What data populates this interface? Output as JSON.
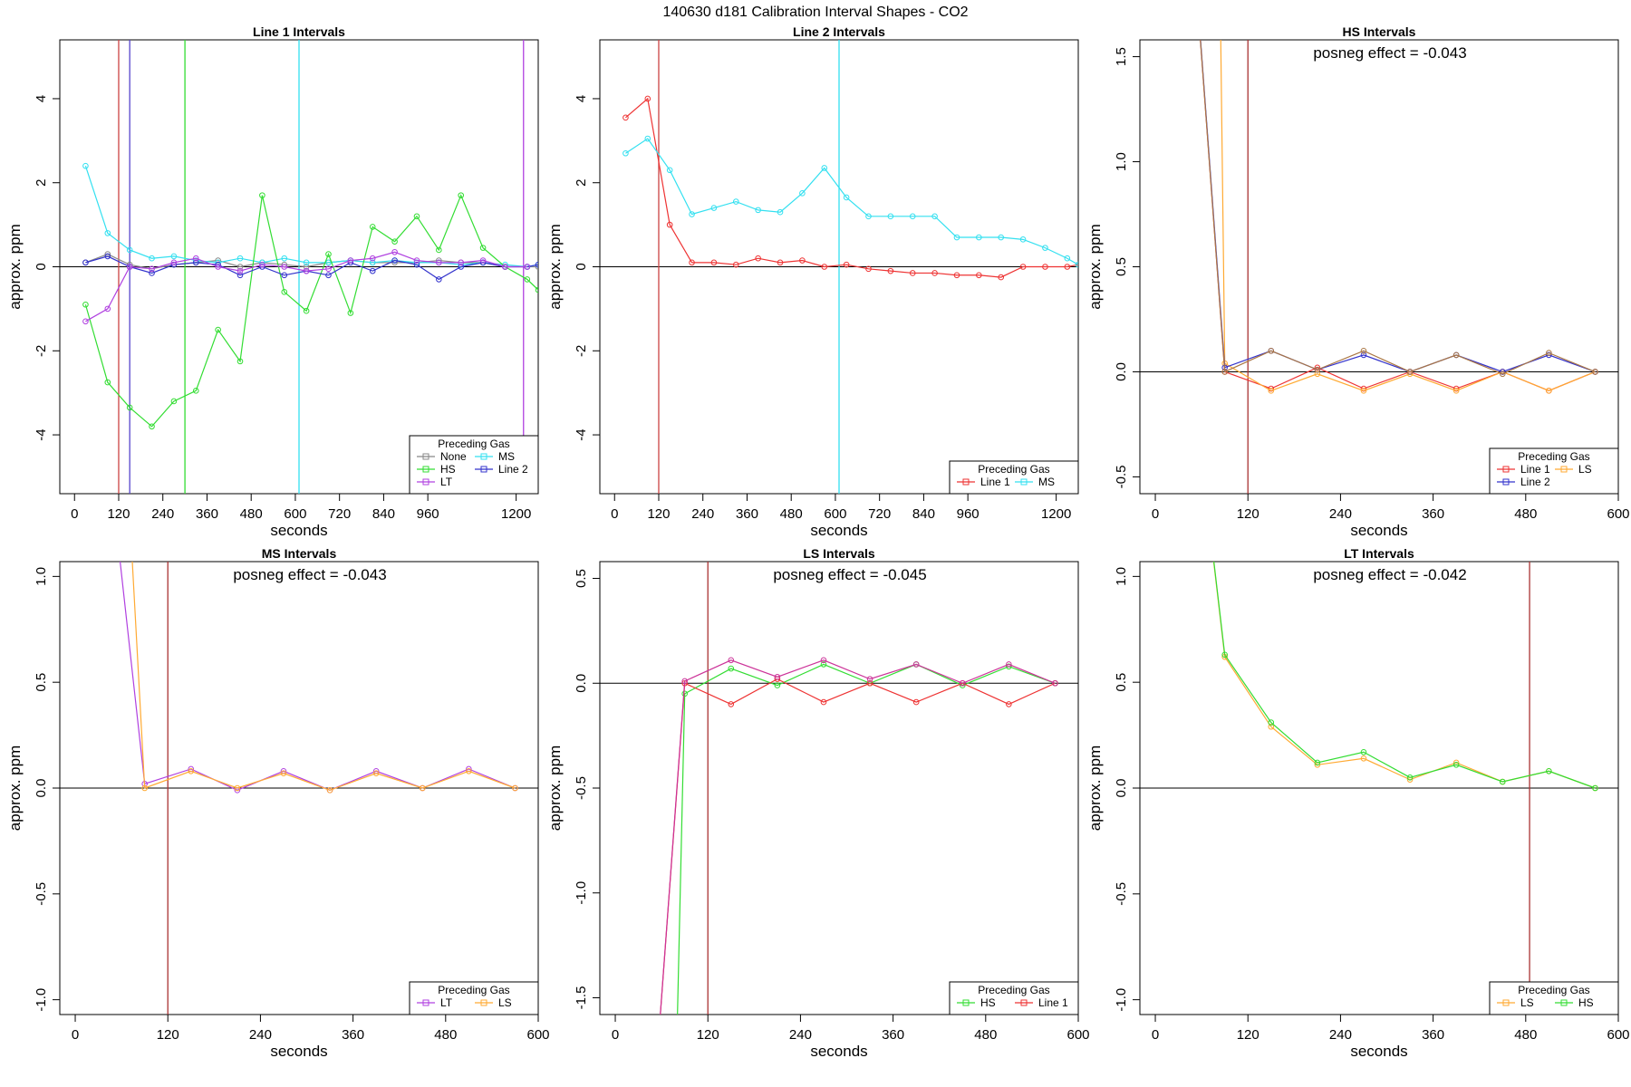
{
  "figure_title": "140630  d181   Calibration Interval Shapes - CO2",
  "colors": {
    "None": "#888888",
    "MS": "#33e0f0",
    "HS": "#33dd33",
    "Line 2": "#3333cc",
    "LT": "#b040e0",
    "Line 1": "#ee3333",
    "LS": "#ffaa33",
    "zero_line": "#000000"
  },
  "chart_data": [
    {
      "type": "line",
      "title": "Line 1 Intervals",
      "xlabel": "seconds",
      "ylabel": "approx. ppm",
      "xlim": [
        -40,
        1260
      ],
      "ylim": [
        -5.4,
        5.4
      ],
      "xticks": [
        0,
        120,
        240,
        360,
        480,
        600,
        720,
        840,
        960,
        1200
      ],
      "yticks": [
        -4,
        -2,
        0,
        2,
        4
      ],
      "annotation": "",
      "vlines": [
        {
          "x": 120,
          "color": "#cc4444"
        },
        {
          "x": 150,
          "color": "#5544cc"
        },
        {
          "x": 300,
          "color": "#33dd33"
        },
        {
          "x": 610,
          "color": "#33e0f0"
        },
        {
          "x": 1220,
          "color": "#b040e0"
        }
      ],
      "legend_title": "Preceding Gas",
      "legend_position": "bottom-right",
      "legend_columns": 2,
      "series": [
        {
          "name": "None",
          "x": [
            30,
            90,
            150,
            210,
            270,
            330,
            390,
            450,
            510,
            570,
            630,
            690,
            750,
            810,
            870,
            930,
            990,
            1050,
            1110,
            1170,
            1230,
            1260
          ],
          "y": [
            0.1,
            0.3,
            0.05,
            -0.05,
            0.05,
            0.1,
            0.15,
            0.0,
            0.1,
            0.05,
            0.0,
            0.1,
            0.15,
            0.1,
            0.1,
            0.1,
            0.15,
            0.1,
            0.1,
            0.0,
            0.0,
            0.0
          ]
        },
        {
          "name": "MS",
          "x": [
            30,
            90,
            150,
            210,
            270,
            330,
            390,
            450,
            510,
            570,
            630,
            690,
            750,
            810,
            870,
            930,
            990,
            1050,
            1110,
            1170,
            1230,
            1260
          ],
          "y": [
            2.4,
            0.8,
            0.4,
            0.2,
            0.25,
            0.15,
            0.1,
            0.2,
            0.1,
            0.2,
            0.1,
            0.1,
            0.15,
            0.1,
            0.15,
            0.1,
            0.1,
            0.05,
            0.1,
            0.05,
            0.0,
            0.05
          ]
        },
        {
          "name": "HS",
          "x": [
            30,
            90,
            150,
            210,
            270,
            330,
            390,
            450,
            510,
            570,
            630,
            690,
            750,
            810,
            870,
            930,
            990,
            1050,
            1110,
            1170,
            1230,
            1260
          ],
          "y": [
            -0.9,
            -2.75,
            -3.35,
            -3.8,
            -3.2,
            -2.95,
            -1.5,
            -2.25,
            1.7,
            -0.6,
            -1.05,
            0.3,
            -1.1,
            0.95,
            0.6,
            1.2,
            0.4,
            1.7,
            0.45,
            0.0,
            -0.3,
            -0.55
          ]
        },
        {
          "name": "Line 2",
          "x": [
            30,
            90,
            150,
            210,
            270,
            330,
            390,
            450,
            510,
            570,
            630,
            690,
            750,
            810,
            870,
            930,
            990,
            1050,
            1110,
            1170,
            1230,
            1260
          ],
          "y": [
            0.1,
            0.25,
            0.0,
            -0.15,
            0.05,
            0.1,
            0.05,
            -0.2,
            0.0,
            -0.2,
            -0.1,
            -0.2,
            0.1,
            -0.1,
            0.15,
            0.05,
            -0.3,
            0.0,
            0.1,
            0.0,
            0.0,
            0.05
          ]
        },
        {
          "name": "LT",
          "x": [
            30,
            90,
            150,
            210,
            270,
            330,
            390,
            450,
            510,
            570,
            630,
            690,
            750,
            810,
            870,
            930,
            990,
            1050,
            1110,
            1170,
            1230
          ],
          "y": [
            -1.3,
            -1.0,
            0.0,
            -0.05,
            0.1,
            0.2,
            0.0,
            -0.1,
            0.05,
            0.0,
            -0.1,
            -0.05,
            0.15,
            0.2,
            0.35,
            0.15,
            0.1,
            0.1,
            0.15,
            0.0,
            0.0
          ]
        }
      ]
    },
    {
      "type": "line",
      "title": "Line 2 Intervals",
      "xlabel": "seconds",
      "ylabel": "approx. ppm",
      "xlim": [
        -40,
        1260
      ],
      "ylim": [
        -5.4,
        5.4
      ],
      "xticks": [
        0,
        120,
        240,
        360,
        480,
        600,
        720,
        840,
        960,
        1200
      ],
      "yticks": [
        -4,
        -2,
        0,
        2,
        4
      ],
      "annotation": "",
      "vlines": [
        {
          "x": 120,
          "color": "#cc4444"
        },
        {
          "x": 610,
          "color": "#33e0f0"
        }
      ],
      "legend_title": "Preceding Gas",
      "legend_position": "bottom-right",
      "legend_columns": 2,
      "series": [
        {
          "name": "Line 1",
          "x": [
            30,
            90,
            150,
            210,
            270,
            330,
            390,
            450,
            510,
            570,
            630,
            690,
            750,
            810,
            870,
            930,
            990,
            1050,
            1110,
            1170,
            1230,
            1260
          ],
          "y": [
            3.55,
            4.0,
            1.0,
            0.1,
            0.1,
            0.05,
            0.2,
            0.1,
            0.15,
            0.0,
            0.05,
            -0.05,
            -0.1,
            -0.15,
            -0.15,
            -0.2,
            -0.2,
            -0.25,
            0.0,
            0.0,
            0.0,
            0.05
          ]
        },
        {
          "name": "MS",
          "x": [
            30,
            90,
            150,
            210,
            270,
            330,
            390,
            450,
            510,
            570,
            630,
            690,
            750,
            810,
            870,
            930,
            990,
            1050,
            1110,
            1170,
            1230,
            1260
          ],
          "y": [
            2.7,
            3.05,
            2.3,
            1.25,
            1.4,
            1.55,
            1.35,
            1.3,
            1.75,
            2.35,
            1.65,
            1.2,
            1.2,
            1.2,
            1.2,
            0.7,
            0.7,
            0.7,
            0.65,
            0.45,
            0.2,
            0.05
          ]
        }
      ]
    },
    {
      "type": "line",
      "title": "HS Intervals",
      "xlabel": "seconds",
      "ylabel": "approx. ppm",
      "xlim": [
        -20,
        600
      ],
      "ylim": [
        -0.58,
        1.58
      ],
      "xticks": [
        0,
        120,
        240,
        360,
        480,
        600
      ],
      "yticks": [
        -0.5,
        0.0,
        0.5,
        1.0,
        1.5
      ],
      "annotation": "posneg effect = -0.043",
      "vlines": [
        {
          "x": 120,
          "color": "#aa3333"
        }
      ],
      "legend_title": "Preceding Gas",
      "legend_position": "bottom-right",
      "legend_columns": 2,
      "series": [
        {
          "name": "Line 1",
          "x": [
            30,
            90,
            150,
            210,
            270,
            330,
            390,
            450,
            510,
            570
          ],
          "y": [
            3.0,
            0.0,
            -0.08,
            0.02,
            -0.08,
            0.0,
            -0.08,
            0.0,
            -0.09,
            0.0
          ]
        },
        {
          "name": "LS",
          "x": [
            80,
            90,
            150,
            210,
            270,
            330,
            390,
            450,
            510,
            570
          ],
          "y": [
            3.0,
            0.04,
            -0.09,
            -0.01,
            -0.09,
            -0.01,
            -0.09,
            0.0,
            -0.09,
            0.0
          ]
        },
        {
          "name": "Line 2",
          "x": [
            30,
            90,
            150,
            210,
            270,
            330,
            390,
            450,
            510,
            570
          ],
          "y": [
            3.0,
            0.02,
            0.1,
            0.01,
            0.08,
            0.0,
            0.08,
            0.0,
            0.08,
            0.0
          ]
        },
        {
          "name": "",
          "x": [
            30,
            90,
            150,
            210,
            270,
            330,
            390,
            450,
            510,
            570
          ],
          "y": [
            3.0,
            0.0,
            0.1,
            0.01,
            0.1,
            0.0,
            0.08,
            -0.01,
            0.09,
            0.0
          ]
        }
      ]
    },
    {
      "type": "line",
      "title": "MS Intervals",
      "xlabel": "seconds",
      "ylabel": "approx. ppm",
      "xlim": [
        -20,
        600
      ],
      "ylim": [
        -1.07,
        1.07
      ],
      "xticks": [
        0,
        120,
        240,
        360,
        480,
        600
      ],
      "yticks": [
        -1.0,
        -0.5,
        0.0,
        0.5,
        1.0
      ],
      "annotation": "posneg effect = -0.043",
      "vlines": [
        {
          "x": 120,
          "color": "#aa3333"
        }
      ],
      "legend_title": "Preceding Gas",
      "legend_position": "bottom-right",
      "legend_columns": 2,
      "series": [
        {
          "name": "LT",
          "x": [
            30,
            90,
            150,
            210,
            270,
            330,
            390,
            450,
            510,
            570
          ],
          "y": [
            2.0,
            0.02,
            0.09,
            -0.01,
            0.08,
            -0.01,
            0.08,
            0.0,
            0.09,
            0.0
          ]
        },
        {
          "name": "LS",
          "x": [
            60,
            90,
            150,
            210,
            270,
            330,
            390,
            450,
            510,
            570
          ],
          "y": [
            2.0,
            0.0,
            0.08,
            0.0,
            0.07,
            -0.01,
            0.07,
            0.0,
            0.08,
            0.0
          ]
        }
      ]
    },
    {
      "type": "line",
      "title": "LS Intervals",
      "xlabel": "seconds",
      "ylabel": "approx. ppm",
      "xlim": [
        -20,
        600
      ],
      "ylim": [
        -1.58,
        0.58
      ],
      "xticks": [
        0,
        120,
        240,
        360,
        480,
        600
      ],
      "yticks": [
        -1.5,
        -1.0,
        -0.5,
        0.0,
        0.5
      ],
      "annotation": "posneg effect = -0.045",
      "vlines": [
        {
          "x": 120,
          "color": "#aa3333"
        }
      ],
      "legend_title": "Preceding Gas",
      "legend_position": "bottom-right",
      "legend_columns": 2,
      "series": [
        {
          "name": "HS",
          "x": [
            78,
            90,
            150,
            210,
            270,
            330,
            390,
            450,
            510,
            570
          ],
          "y": [
            -2.0,
            -0.05,
            0.07,
            -0.01,
            0.09,
            0.0,
            0.09,
            -0.01,
            0.08,
            0.0
          ]
        },
        {
          "name": "Line 1",
          "x": [
            50,
            90,
            150,
            210,
            270,
            330,
            390,
            450,
            510,
            570
          ],
          "y": [
            -2.0,
            0.0,
            -0.1,
            0.02,
            -0.09,
            0.0,
            -0.09,
            0.0,
            -0.1,
            0.0
          ]
        },
        {
          "name": "",
          "x": [
            50,
            90,
            150,
            210,
            270,
            330,
            390,
            450,
            510,
            570
          ],
          "y": [
            -2.0,
            0.01,
            0.11,
            0.03,
            0.11,
            0.02,
            0.09,
            0.0,
            0.09,
            0.0
          ]
        }
      ]
    },
    {
      "type": "line",
      "title": "LT Intervals",
      "xlabel": "seconds",
      "ylabel": "approx. ppm",
      "xlim": [
        -20,
        600
      ],
      "ylim": [
        -1.07,
        1.07
      ],
      "xticks": [
        0,
        120,
        240,
        360,
        480,
        600
      ],
      "yticks": [
        -1.0,
        -0.5,
        0.0,
        0.5,
        1.0
      ],
      "annotation": "posneg effect = -0.042",
      "vlines": [
        {
          "x": 485,
          "color": "#aa3333"
        }
      ],
      "legend_title": "Preceding Gas",
      "legend_position": "bottom-right",
      "legend_columns": 2,
      "series": [
        {
          "name": "LS",
          "x": [
            30,
            90,
            150,
            210,
            270,
            330,
            390,
            450,
            510,
            570
          ],
          "y": [
            2.5,
            0.62,
            0.29,
            0.11,
            0.14,
            0.04,
            0.12,
            0.03,
            0.08,
            0.0
          ]
        },
        {
          "name": "HS",
          "x": [
            30,
            90,
            150,
            210,
            270,
            330,
            390,
            450,
            510,
            570
          ],
          "y": [
            2.5,
            0.63,
            0.31,
            0.12,
            0.17,
            0.05,
            0.11,
            0.03,
            0.08,
            0.0
          ]
        }
      ]
    }
  ]
}
